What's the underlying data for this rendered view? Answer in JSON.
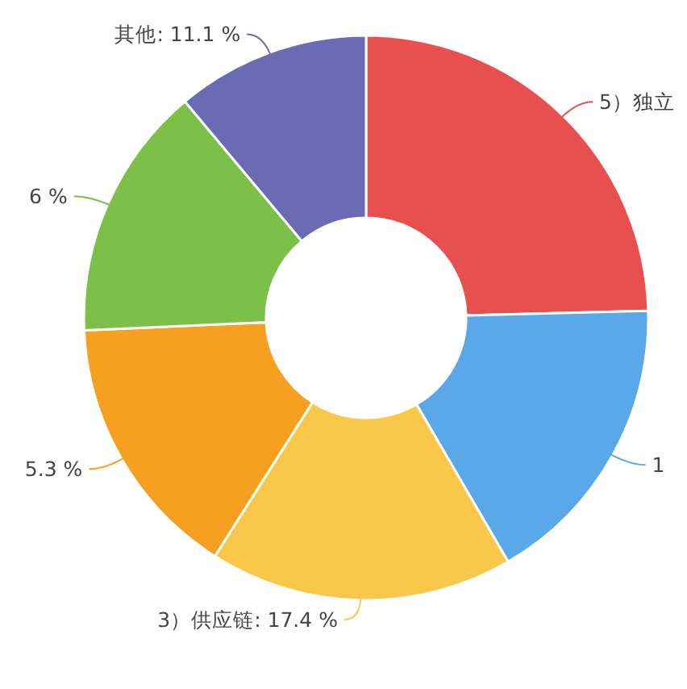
{
  "chart_data": {
    "type": "donut",
    "categories": [
      "5）独立",
      "1",
      "3）供应链: 17.4 %",
      "5.3 %",
      "6 %",
      "其他: 11.1 %"
    ],
    "values": [
      24.6,
      17.0,
      17.4,
      15.3,
      14.6,
      11.1
    ],
    "colors": [
      "#e85050",
      "#5aa8e8",
      "#f9c74a",
      "#f5a020",
      "#7cc04a",
      "#6b6bb4"
    ]
  }
}
